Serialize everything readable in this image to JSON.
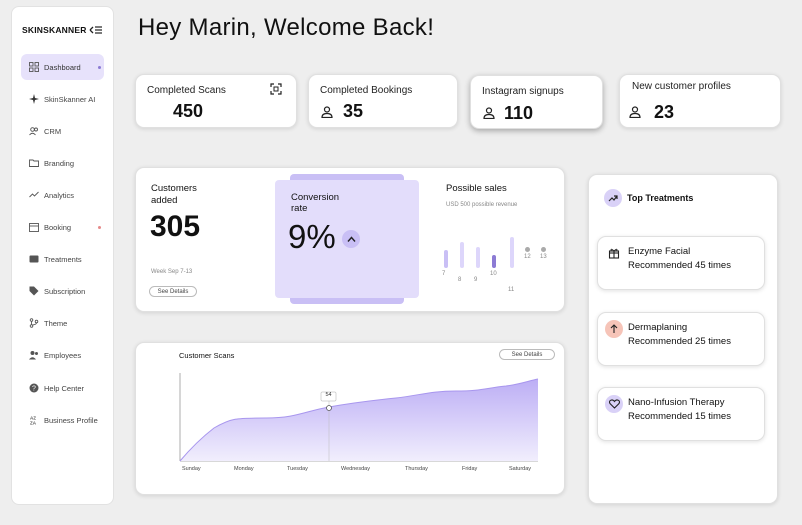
{
  "sidebar": {
    "brand": "SKINSKANNER",
    "items": [
      {
        "label": "Dashboard"
      },
      {
        "label": "SkinSkanner AI"
      },
      {
        "label": "CRM"
      },
      {
        "label": "Branding"
      },
      {
        "label": "Analytics"
      },
      {
        "label": "Booking"
      },
      {
        "label": "Treatments"
      },
      {
        "label": "Subscription"
      },
      {
        "label": "Theme"
      },
      {
        "label": "Employees"
      },
      {
        "label": "Help Center"
      },
      {
        "label": "Business Profile"
      }
    ]
  },
  "header": {
    "title": "Hey Marin, Welcome Back!"
  },
  "stats": [
    {
      "label": "Completed Scans",
      "value": "450",
      "icon": "qr-scan-icon"
    },
    {
      "label": "Completed Bookings",
      "value": "35",
      "icon": "user-icon"
    },
    {
      "label": "Instagram signups",
      "value": "110",
      "icon": "user-icon"
    },
    {
      "label": "New customer profiles",
      "value": "23",
      "icon": "user-icon"
    }
  ],
  "customers": {
    "label_line1": "Customers",
    "label_line2": "added",
    "value": "305",
    "period": "Week Sep 7-13",
    "details_label": "See Details"
  },
  "conversion": {
    "label_line1": "Conversion",
    "label_line2": "rate",
    "value": "9%"
  },
  "possible_sales": {
    "title": "Possible sales",
    "subtitle": "USD 500 possible revenue",
    "bars": [
      {
        "label": "7",
        "value": 0.35
      },
      {
        "label": "8",
        "value": 0.5
      },
      {
        "label": "9",
        "value": 0.4
      },
      {
        "label": "10",
        "value": 0.25
      },
      {
        "label": "11",
        "value": 0.6
      },
      {
        "label": "12",
        "value": 0.0
      },
      {
        "label": "13",
        "value": 0.0
      }
    ]
  },
  "scans_chart": {
    "title": "Customer Scans",
    "details_label": "See Details",
    "tooltip_value": "54",
    "days": [
      "Sunday",
      "Monday",
      "Tuesday",
      "Wednesday",
      "Thursday",
      "Friday",
      "Saturday"
    ]
  },
  "top_treatments": {
    "title": "Top Treatments",
    "items": [
      {
        "name": "Enzyme Facial",
        "sub": "Recommended 45 times",
        "color": "#ffffff"
      },
      {
        "name": "Dermaplaning",
        "sub": "Recommended 25 times",
        "color": "#f6c4b8"
      },
      {
        "name": "Nano-Infusion Therapy",
        "sub": "Recommended 15 times",
        "color": "#d9d1f7"
      }
    ]
  },
  "colors": {
    "accent": "#c9bff5",
    "accent_light": "#e3ddfb",
    "accent_dark": "#8c7bd4"
  }
}
